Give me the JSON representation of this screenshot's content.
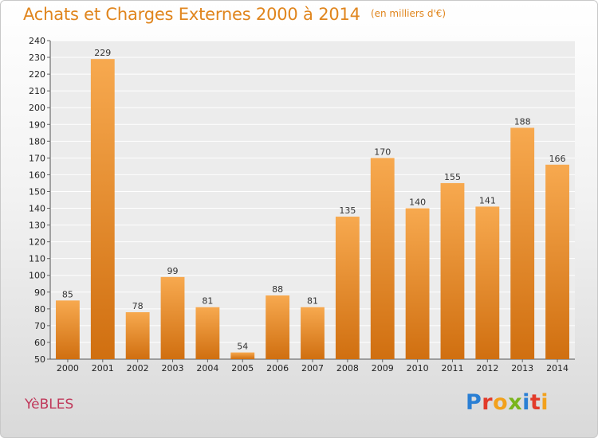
{
  "title": "Achats et Charges Externes 2000 à 2014",
  "subtitle": "(en milliers d'€)",
  "commune": "YèBLES",
  "brand": {
    "letters": [
      "P",
      "r",
      "o",
      "x",
      "i",
      "t",
      "i"
    ],
    "colors": [
      "#2a7fd4",
      "#e23b2a",
      "#f2a11c",
      "#7ab51d",
      "#2a7fd4",
      "#e23b2a",
      "#f2a11c"
    ]
  },
  "colors": {
    "title": "#e0851d",
    "commune": "#c0385a",
    "bar_light": "#f7a94f",
    "bar_dark": "#d06f10"
  },
  "chart_data": {
    "type": "bar",
    "categories": [
      "2000",
      "2001",
      "2002",
      "2003",
      "2004",
      "2005",
      "2006",
      "2007",
      "2008",
      "2009",
      "2010",
      "2011",
      "2012",
      "2013",
      "2014"
    ],
    "values": [
      85,
      229,
      78,
      99,
      81,
      54,
      88,
      81,
      135,
      170,
      140,
      155,
      141,
      188,
      166
    ],
    "ylim": [
      50,
      240
    ],
    "yticks": [
      50,
      60,
      70,
      80,
      90,
      100,
      110,
      120,
      130,
      140,
      150,
      160,
      170,
      180,
      190,
      200,
      210,
      220,
      230,
      240
    ],
    "grid": true,
    "data_labels": true
  }
}
